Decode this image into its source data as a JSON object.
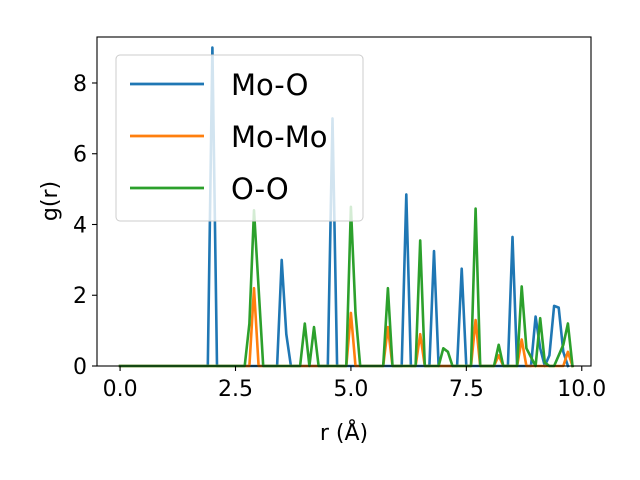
{
  "chart_data": {
    "type": "line",
    "xlabel": "r (Å)",
    "ylabel": "g(r)",
    "xlim": [
      -0.5,
      10.2
    ],
    "ylim": [
      0,
      9.3
    ],
    "xticks": [
      0.0,
      2.5,
      5.0,
      7.5,
      10.0
    ],
    "xtick_labels": [
      "0.0",
      "2.5",
      "5.0",
      "7.5",
      "10.0"
    ],
    "yticks": [
      0,
      2,
      4,
      6,
      8
    ],
    "ytick_labels": [
      "0",
      "2",
      "4",
      "6",
      "8"
    ],
    "grid": false,
    "legend_position": "top-left",
    "series": [
      {
        "name": "Mo-O",
        "color": "#1f77b4",
        "x": [
          0,
          1.9,
          2.0,
          2.1,
          3.4,
          3.5,
          3.6,
          3.7,
          4.5,
          4.6,
          4.7,
          6.1,
          6.2,
          6.3,
          6.7,
          6.8,
          6.9,
          7.3,
          7.4,
          7.5,
          8.4,
          8.5,
          8.6,
          8.9,
          9.0,
          9.1,
          9.2,
          9.3,
          9.4,
          9.5,
          9.6,
          9.7
        ],
        "y": [
          0,
          0,
          9.0,
          0,
          0,
          3.0,
          0.9,
          0,
          0,
          7.0,
          0,
          0,
          4.85,
          0,
          0,
          3.25,
          0,
          0,
          2.75,
          0,
          0,
          3.65,
          0,
          0,
          1.4,
          0.5,
          0,
          0.3,
          1.7,
          1.65,
          0.4,
          0
        ]
      },
      {
        "name": "Mo-Mo",
        "color": "#ff7f0e",
        "x": [
          0,
          2.8,
          2.9,
          3.0,
          4.9,
          5.0,
          5.1,
          5.7,
          5.8,
          5.9,
          6.4,
          6.5,
          6.6,
          7.6,
          7.7,
          7.8,
          8.1,
          8.2,
          8.3,
          8.6,
          8.7,
          8.8,
          9.6,
          9.7,
          9.8
        ],
        "y": [
          0,
          0,
          2.2,
          0,
          0,
          1.5,
          0,
          0,
          1.1,
          0,
          0,
          0.9,
          0,
          0,
          1.3,
          0,
          0,
          0.3,
          0,
          0,
          0.75,
          0,
          0,
          0.4,
          0
        ]
      },
      {
        "name": "O-O",
        "color": "#2ca02c",
        "x": [
          0,
          2.7,
          2.8,
          2.9,
          3.0,
          3.1,
          3.9,
          4.0,
          4.1,
          4.2,
          4.3,
          4.9,
          5.0,
          5.1,
          5.2,
          5.7,
          5.8,
          5.9,
          6.0,
          6.4,
          6.5,
          6.6,
          6.9,
          7.0,
          7.1,
          7.2,
          7.6,
          7.7,
          7.8,
          8.1,
          8.2,
          8.3,
          8.6,
          8.7,
          8.8,
          9.0,
          9.1,
          9.2,
          9.3,
          9.4,
          9.6,
          9.7,
          9.8
        ],
        "y": [
          0,
          0,
          1.2,
          4.4,
          2.2,
          0,
          0,
          1.2,
          0,
          1.1,
          0,
          0,
          4.5,
          1.5,
          0,
          0,
          2.2,
          0,
          0,
          0,
          3.55,
          0,
          0,
          0.5,
          0.4,
          0,
          0,
          4.45,
          0,
          0,
          0.6,
          0,
          0,
          2.25,
          0.5,
          0,
          1.35,
          0.1,
          0,
          0,
          0.6,
          1.2,
          0
        ]
      }
    ]
  }
}
